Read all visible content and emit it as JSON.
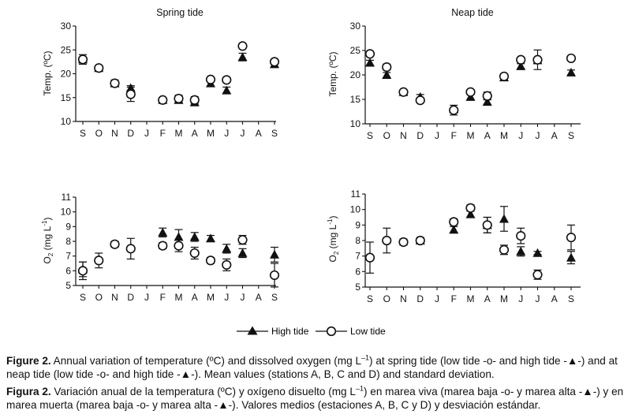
{
  "months": [
    "S",
    "O",
    "N",
    "D",
    "J",
    "F",
    "M",
    "A",
    "M",
    "J",
    "J",
    "A",
    "S"
  ],
  "colors": {
    "ink": "#111111",
    "fill_open": "#ffffff"
  },
  "legend": {
    "high": "High tide",
    "low": "Low tide"
  },
  "chart_data": [
    {
      "id": "spring-temp",
      "type": "scatter",
      "title": "Spring tide",
      "ylabel": "Temp. (ºC)",
      "ylim": [
        10,
        30
      ],
      "yticks": [
        10,
        15,
        20,
        25,
        30
      ],
      "high_tide": [
        23,
        21.2,
        18,
        17,
        null,
        14.5,
        14.5,
        14,
        18,
        16.5,
        23.5,
        null,
        22
      ],
      "low_tide": [
        23,
        21.2,
        18,
        15.7,
        null,
        14.5,
        14.8,
        14.5,
        18.8,
        18.7,
        25.8,
        null,
        22.5
      ],
      "high_err": [
        0,
        0,
        0,
        0.5,
        null,
        0,
        0.5,
        0.5,
        0.7,
        0.7,
        0.8,
        null,
        0.5
      ],
      "low_err": [
        1.0,
        0.5,
        0.7,
        1.5,
        null,
        0.5,
        0.7,
        0.7,
        0.5,
        0.5,
        0.5,
        null,
        0.5
      ]
    },
    {
      "id": "neap-temp",
      "type": "scatter",
      "title": "Neap tide",
      "ylabel": "Temp. (ºC)",
      "ylim": [
        10,
        30
      ],
      "yticks": [
        10,
        15,
        20,
        25,
        30
      ],
      "high_tide": [
        22.5,
        20,
        16.5,
        15.5,
        null,
        13,
        15.5,
        14.5,
        19.5,
        21.8,
        23,
        null,
        20.5
      ],
      "low_tide": [
        24.3,
        21.6,
        16.5,
        14.8,
        null,
        12.8,
        16.5,
        15.7,
        19.7,
        23.1,
        23.1,
        null,
        23.4
      ],
      "high_err": [
        0.5,
        0.5,
        0,
        0.5,
        null,
        0,
        0.5,
        0.5,
        0,
        0.5,
        0,
        null,
        0.5
      ],
      "low_err": [
        0.5,
        0.6,
        0.5,
        0.5,
        null,
        1.0,
        0.5,
        0.8,
        0.5,
        0.5,
        2.0,
        null,
        0.5
      ]
    },
    {
      "id": "spring-o2",
      "type": "scatter",
      "title": "",
      "ylabel": "O2 (mg L-1)",
      "ylim": [
        5,
        11
      ],
      "yticks": [
        5,
        6,
        7,
        8,
        9,
        10,
        11
      ],
      "high_tide": [
        6.1,
        null,
        null,
        null,
        null,
        8.6,
        8.3,
        8.3,
        8.2,
        7.5,
        7.2,
        null,
        7.1
      ],
      "low_tide": [
        6.0,
        6.7,
        7.8,
        7.5,
        null,
        7.7,
        7.7,
        7.2,
        6.7,
        6.4,
        8.1,
        null,
        5.7
      ],
      "high_err": [
        0.5,
        null,
        null,
        null,
        null,
        0.3,
        0.5,
        0.3,
        0.2,
        0.3,
        0.3,
        null,
        0.5
      ],
      "low_err": [
        0.6,
        0.5,
        0.2,
        0.7,
        null,
        0.2,
        0.4,
        0.4,
        0.2,
        0.4,
        0.3,
        null,
        0.8
      ]
    },
    {
      "id": "neap-o2",
      "type": "scatter",
      "title": "",
      "ylabel": "O2 (mg L-1)",
      "ylim": [
        5,
        11
      ],
      "yticks": [
        5,
        6,
        7,
        8,
        9,
        10,
        11
      ],
      "high_tide": [
        null,
        null,
        null,
        8.0,
        null,
        8.7,
        9.7,
        9.0,
        9.4,
        7.3,
        7.2,
        null,
        6.9
      ],
      "low_tide": [
        6.9,
        8.0,
        7.9,
        8.0,
        null,
        9.2,
        10.1,
        9.0,
        7.4,
        8.3,
        5.8,
        null,
        8.2
      ],
      "high_err": [
        null,
        null,
        null,
        0.1,
        null,
        0.2,
        0.2,
        0.5,
        0.8,
        0.3,
        0.1,
        null,
        0.4
      ],
      "low_err": [
        1.0,
        0.8,
        0.2,
        0.2,
        null,
        0.2,
        0.2,
        0.5,
        0.3,
        0.5,
        0.3,
        null,
        0.8
      ]
    }
  ],
  "caption_en": {
    "label": "Figure 2.",
    "text_a": " Annual variation of temperature (ºC) and dissolved oxygen (mg L",
    "sup": "–1",
    "text_b": ") at spring tide (low tide -o- and high tide -▲-) and at neap tide (low tide -o- and high tide -▲-). Mean values (stations A, B, C and D) and standard deviation."
  },
  "caption_es": {
    "label": "Figura 2.",
    "text_a": " Variación anual de la temperatura (ºC) y oxígeno disuelto (mg L",
    "sup": "–1",
    "text_b": ") en marea viva (marea baja -o- y marea alta -▲-) y en marea muerta (marea baja -o- y marea alta -▲-). Valores medios (estaciones A, B, C y D) y desviación estándar."
  }
}
